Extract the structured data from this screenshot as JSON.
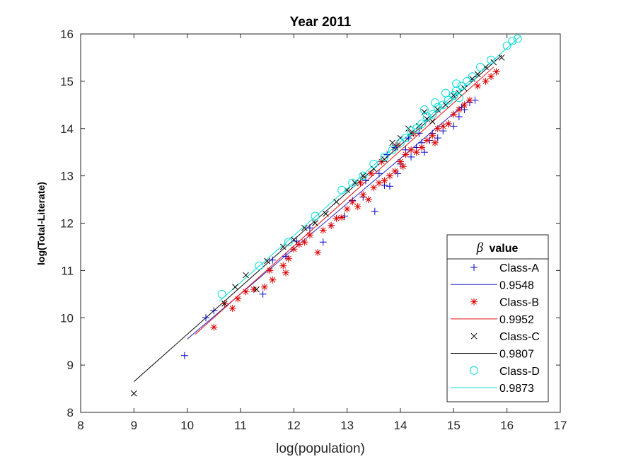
{
  "chart_data": {
    "type": "scatter",
    "title": "Year 2011",
    "xlabel": "log(population)",
    "ylabel": "log(Total-Literate)",
    "xlim": [
      8,
      17
    ],
    "ylim": [
      8,
      16
    ],
    "xticks": [
      "8",
      "9",
      "10",
      "11",
      "12",
      "13",
      "14",
      "15",
      "16",
      "17"
    ],
    "yticks": [
      "8",
      "9",
      "10",
      "11",
      "12",
      "13",
      "14",
      "15",
      "16"
    ],
    "grid": false,
    "legend": {
      "title_symbol": "β",
      "title_text": "value",
      "placement": "bottom-right"
    },
    "series": [
      {
        "name": "Class-A",
        "fit_label": "0.9548",
        "marker": "plus",
        "color": "#0000CC",
        "fit_color": "#2020CC",
        "fit": [
          [
            10.0,
            9.55
          ],
          [
            15.3,
            14.61
          ]
        ],
        "points": [
          [
            9.95,
            9.2
          ],
          [
            10.35,
            10.0
          ],
          [
            10.5,
            10.15
          ],
          [
            11.42,
            10.5
          ],
          [
            11.6,
            11.22
          ],
          [
            11.85,
            11.3
          ],
          [
            12.05,
            11.62
          ],
          [
            12.3,
            11.9
          ],
          [
            12.55,
            11.6
          ],
          [
            12.7,
            11.95
          ],
          [
            12.95,
            12.15
          ],
          [
            13.1,
            12.48
          ],
          [
            13.3,
            12.55
          ],
          [
            13.52,
            12.25
          ],
          [
            13.7,
            12.8
          ],
          [
            13.8,
            12.78
          ],
          [
            13.35,
            12.9
          ],
          [
            13.6,
            13.05
          ],
          [
            13.95,
            13.05
          ],
          [
            14.0,
            13.25
          ],
          [
            14.1,
            13.55
          ],
          [
            14.2,
            13.4
          ],
          [
            14.3,
            13.6
          ],
          [
            14.4,
            13.7
          ],
          [
            14.45,
            13.5
          ],
          [
            14.55,
            13.75
          ],
          [
            14.6,
            13.9
          ],
          [
            14.7,
            13.8
          ],
          [
            14.8,
            13.95
          ],
          [
            14.9,
            14.1
          ],
          [
            15.0,
            14.05
          ],
          [
            15.1,
            14.25
          ],
          [
            15.2,
            14.4
          ],
          [
            15.3,
            14.55
          ],
          [
            15.4,
            14.6
          ],
          [
            15.15,
            14.45
          ],
          [
            14.35,
            13.9
          ],
          [
            14.15,
            13.8
          ],
          [
            13.9,
            13.6
          ],
          [
            13.75,
            13.45
          ]
        ]
      },
      {
        "name": "Class-B",
        "fit_label": "0.9952",
        "marker": "asterisk",
        "color": "#DD0000",
        "fit_color": "#DD1111",
        "fit": [
          [
            10.15,
            9.65
          ],
          [
            15.75,
            15.3
          ]
        ],
        "points": [
          [
            10.5,
            9.8
          ],
          [
            10.7,
            10.3
          ],
          [
            10.85,
            10.2
          ],
          [
            10.95,
            10.4
          ],
          [
            11.1,
            10.55
          ],
          [
            11.25,
            10.6
          ],
          [
            11.45,
            10.65
          ],
          [
            11.55,
            11.0
          ],
          [
            11.6,
            10.8
          ],
          [
            11.8,
            11.1
          ],
          [
            11.85,
            10.95
          ],
          [
            11.9,
            11.25
          ],
          [
            12.0,
            11.45
          ],
          [
            12.1,
            11.55
          ],
          [
            12.2,
            11.6
          ],
          [
            12.3,
            11.75
          ],
          [
            12.45,
            11.38
          ],
          [
            12.55,
            11.85
          ],
          [
            12.7,
            11.95
          ],
          [
            12.8,
            12.1
          ],
          [
            12.9,
            12.12
          ],
          [
            13.0,
            12.3
          ],
          [
            13.1,
            12.45
          ],
          [
            13.2,
            12.35
          ],
          [
            13.3,
            12.6
          ],
          [
            13.4,
            12.5
          ],
          [
            13.5,
            12.75
          ],
          [
            13.6,
            12.85
          ],
          [
            13.7,
            12.9
          ],
          [
            13.8,
            13.0
          ],
          [
            13.9,
            13.1
          ],
          [
            14.0,
            13.3
          ],
          [
            14.05,
            13.2
          ],
          [
            14.1,
            13.45
          ],
          [
            14.2,
            13.55
          ],
          [
            14.3,
            13.5
          ],
          [
            14.4,
            13.6
          ],
          [
            14.5,
            13.75
          ],
          [
            14.6,
            13.85
          ],
          [
            14.65,
            13.7
          ],
          [
            14.7,
            14.0
          ],
          [
            14.8,
            14.05
          ],
          [
            14.9,
            14.1
          ],
          [
            15.0,
            14.3
          ],
          [
            15.1,
            14.4
          ],
          [
            15.2,
            14.5
          ],
          [
            15.3,
            14.6
          ],
          [
            15.45,
            14.9
          ],
          [
            15.6,
            15.0
          ],
          [
            15.8,
            15.2
          ],
          [
            15.7,
            15.1
          ],
          [
            14.25,
            13.9
          ],
          [
            13.95,
            13.65
          ],
          [
            13.65,
            13.3
          ],
          [
            13.45,
            13.05
          ],
          [
            13.25,
            12.85
          ]
        ]
      },
      {
        "name": "Class-C",
        "fit_label": "0.9807",
        "marker": "cross",
        "color": "#000000",
        "fit_color": "#000000",
        "fit": [
          [
            9.0,
            8.65
          ],
          [
            15.9,
            15.55
          ]
        ],
        "points": [
          [
            9.0,
            8.4
          ],
          [
            10.7,
            10.3
          ],
          [
            10.9,
            10.65
          ],
          [
            11.1,
            10.9
          ],
          [
            11.3,
            10.6
          ],
          [
            11.5,
            11.2
          ],
          [
            11.8,
            11.5
          ],
          [
            12.0,
            11.65
          ],
          [
            12.2,
            11.9
          ],
          [
            12.4,
            12.0
          ],
          [
            12.6,
            12.2
          ],
          [
            12.8,
            12.45
          ],
          [
            13.0,
            12.7
          ],
          [
            13.15,
            12.85
          ],
          [
            13.3,
            13.0
          ],
          [
            13.5,
            13.15
          ],
          [
            13.7,
            13.35
          ],
          [
            13.9,
            13.6
          ],
          [
            14.0,
            13.8
          ],
          [
            14.2,
            13.9
          ],
          [
            14.35,
            14.05
          ],
          [
            14.5,
            14.2
          ],
          [
            14.6,
            14.15
          ],
          [
            14.7,
            14.4
          ],
          [
            14.85,
            14.5
          ],
          [
            15.0,
            14.7
          ],
          [
            15.1,
            14.75
          ],
          [
            15.2,
            14.85
          ],
          [
            15.35,
            15.05
          ],
          [
            15.45,
            15.15
          ],
          [
            15.6,
            15.3
          ],
          [
            15.75,
            15.4
          ],
          [
            15.9,
            15.5
          ],
          [
            14.45,
            14.35
          ],
          [
            14.15,
            14.0
          ],
          [
            13.85,
            13.7
          ]
        ]
      },
      {
        "name": "Class-D",
        "fit_label": "0.9873",
        "marker": "circle",
        "color": "#00DDDD",
        "fit_color": "#00DDDD",
        "fit": [
          [
            10.6,
            10.35
          ],
          [
            16.25,
            15.95
          ]
        ],
        "points": [
          [
            10.65,
            10.5
          ],
          [
            11.35,
            11.1
          ],
          [
            11.9,
            11.6
          ],
          [
            12.4,
            12.15
          ],
          [
            12.9,
            12.7
          ],
          [
            13.1,
            12.85
          ],
          [
            13.3,
            13.0
          ],
          [
            13.5,
            13.25
          ],
          [
            13.7,
            13.4
          ],
          [
            13.85,
            13.55
          ],
          [
            14.0,
            13.7
          ],
          [
            14.1,
            13.8
          ],
          [
            14.2,
            13.95
          ],
          [
            14.3,
            14.0
          ],
          [
            14.4,
            14.1
          ],
          [
            14.5,
            14.25
          ],
          [
            14.6,
            14.3
          ],
          [
            14.7,
            14.45
          ],
          [
            14.8,
            14.5
          ],
          [
            14.9,
            14.6
          ],
          [
            15.0,
            14.7
          ],
          [
            15.05,
            14.8
          ],
          [
            15.1,
            14.65
          ],
          [
            15.15,
            14.9
          ],
          [
            15.25,
            15.0
          ],
          [
            15.35,
            15.1
          ],
          [
            15.5,
            15.3
          ],
          [
            15.7,
            15.45
          ],
          [
            16.0,
            15.75
          ],
          [
            16.1,
            15.85
          ],
          [
            16.2,
            15.9
          ],
          [
            14.45,
            14.4
          ],
          [
            14.65,
            14.55
          ],
          [
            14.85,
            14.75
          ],
          [
            15.05,
            14.95
          ]
        ]
      }
    ]
  }
}
